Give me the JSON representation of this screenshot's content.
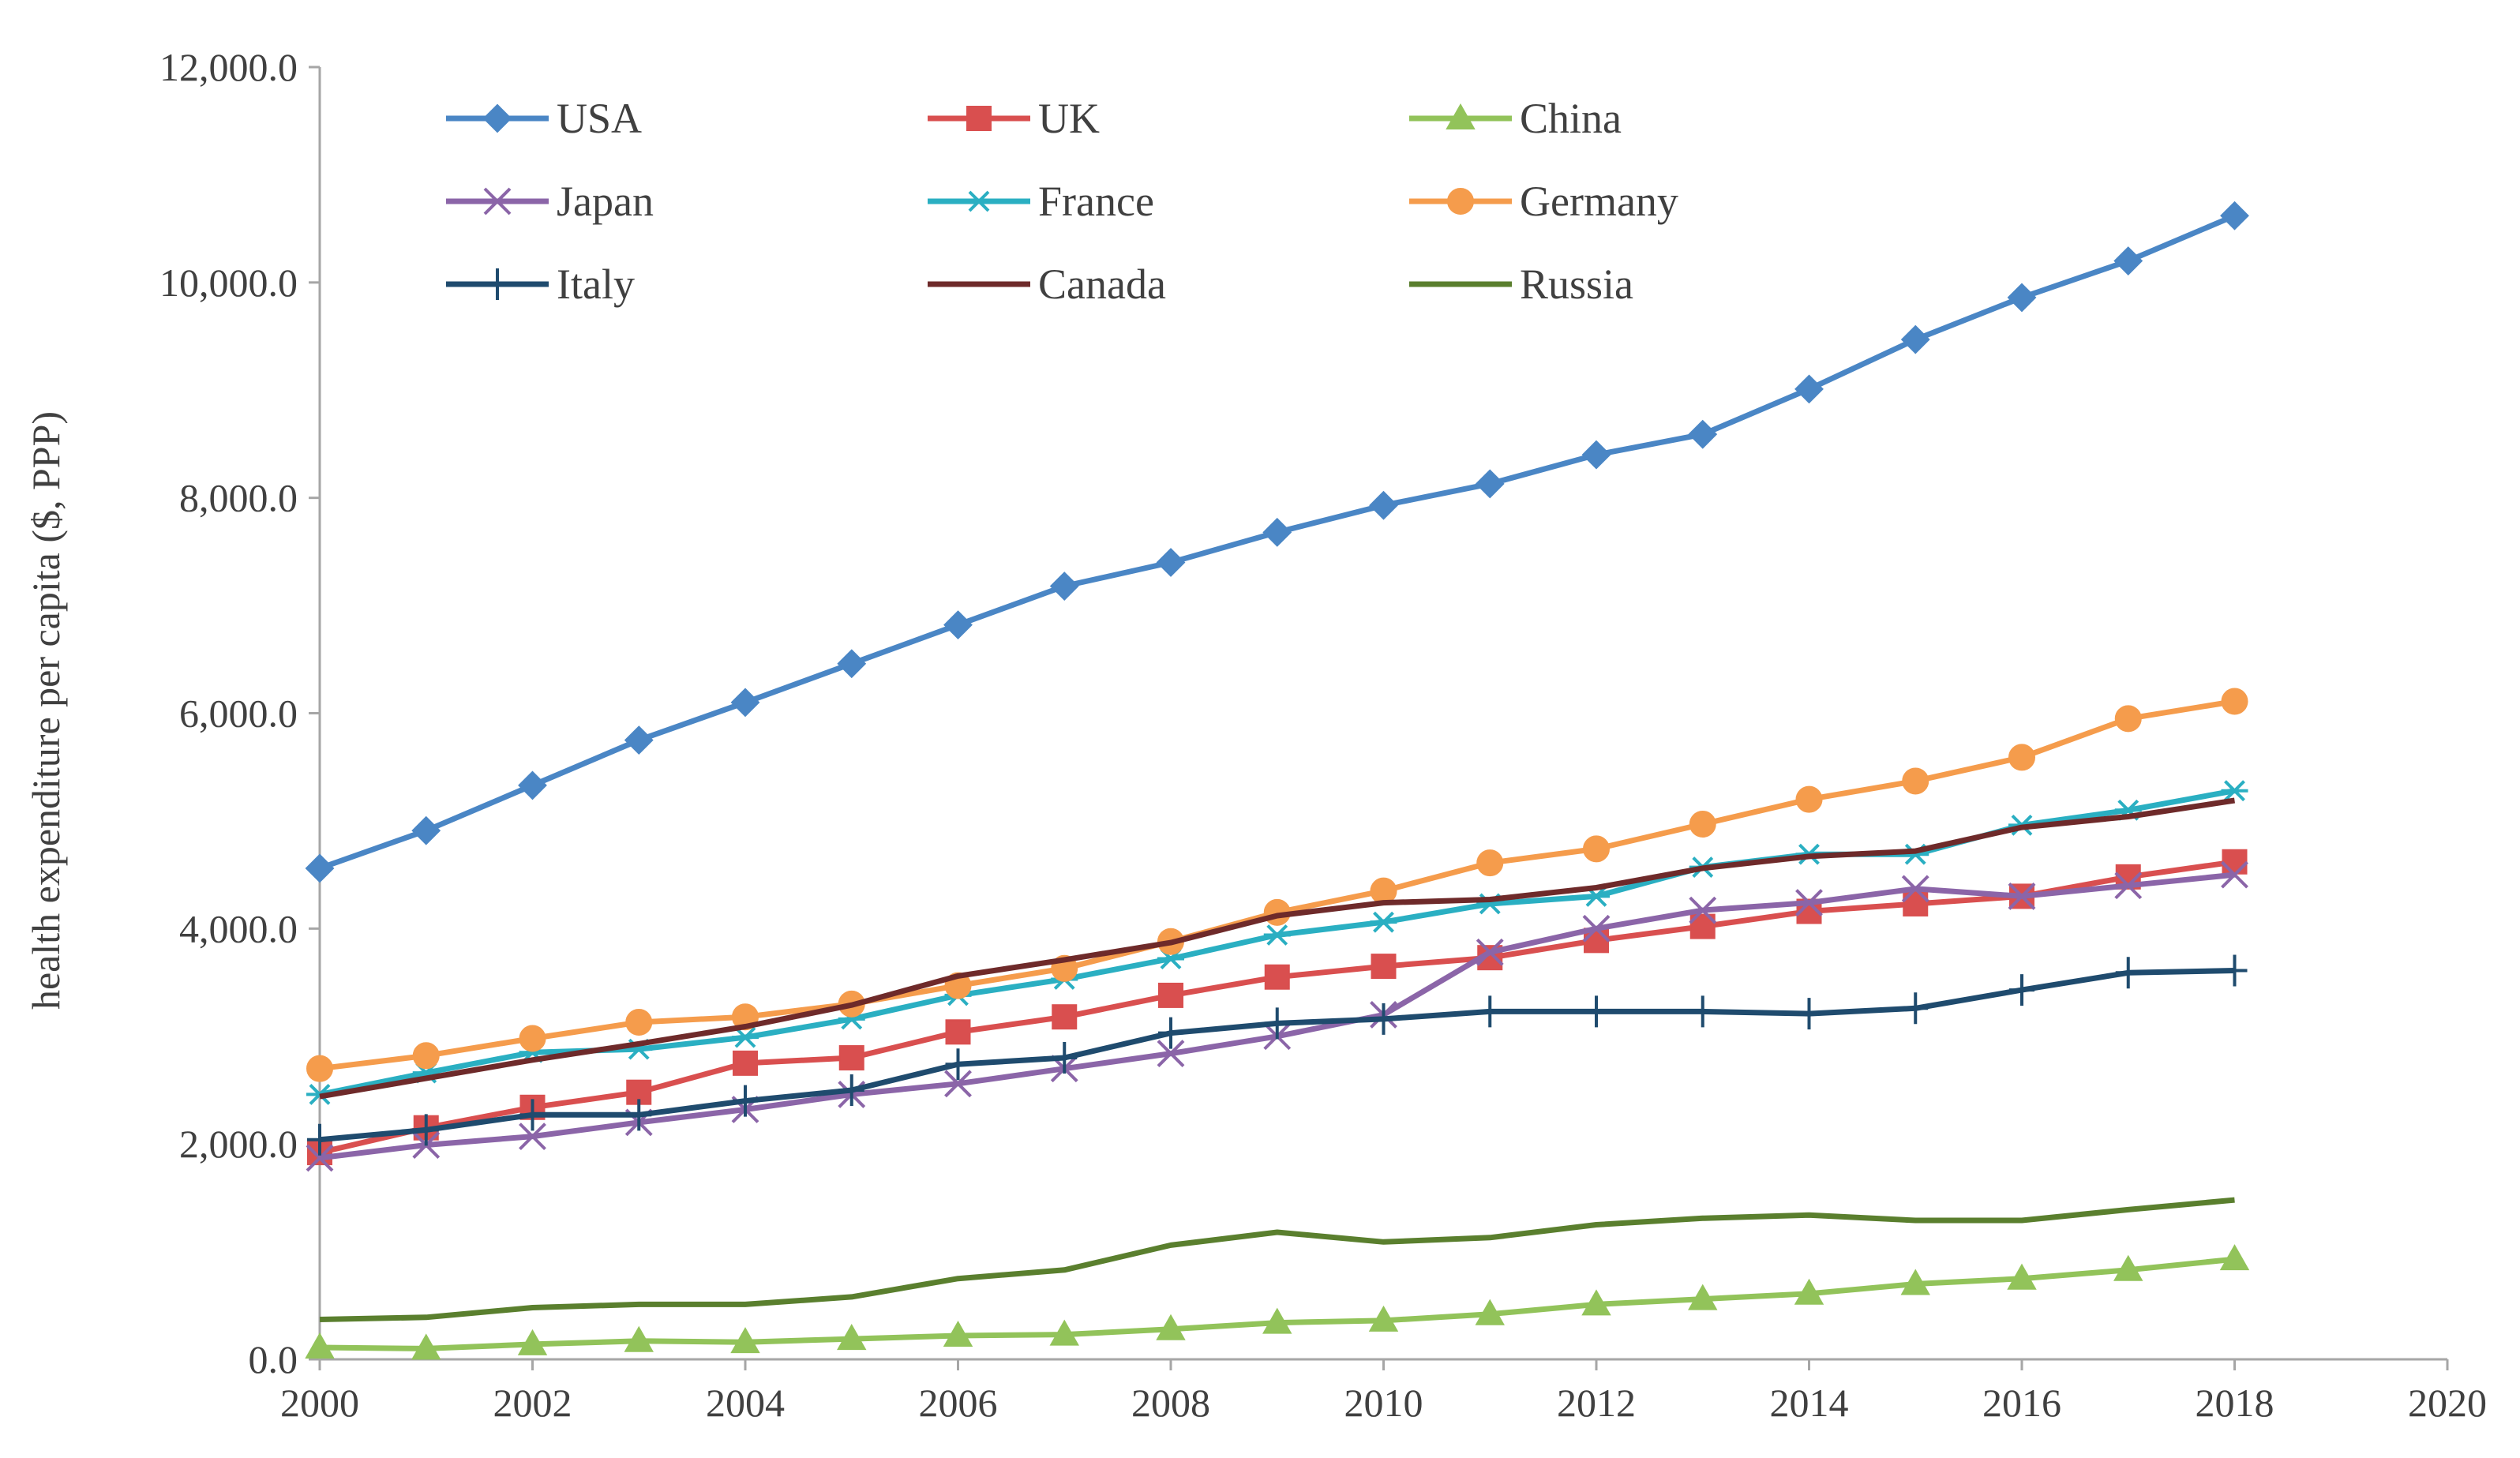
{
  "chart_data": {
    "type": "line",
    "title": "",
    "xlabel": "",
    "ylabel": "health expenditure per capita ($, PPP)",
    "xlim": [
      2000,
      2020
    ],
    "ylim": [
      0,
      12000
    ],
    "x_ticks": [
      2000,
      2002,
      2004,
      2006,
      2008,
      2010,
      2012,
      2014,
      2016,
      2018,
      2020
    ],
    "x_tick_labels": [
      "2000",
      "2002",
      "2004",
      "2006",
      "2008",
      "2010",
      "2012",
      "2014",
      "2016",
      "2018",
      "2020"
    ],
    "y_ticks": [
      0,
      2000,
      4000,
      6000,
      8000,
      10000,
      12000
    ],
    "y_tick_labels": [
      "0.0",
      "2,000.0",
      "4,000.0",
      "6,000.0",
      "8,000.0",
      "10,000.0",
      "12,000.0"
    ],
    "grid": false,
    "legend_position": "top-left, inside plot, 3 columns",
    "x": [
      2000,
      2001,
      2002,
      2003,
      2004,
      2005,
      2006,
      2007,
      2008,
      2009,
      2010,
      2011,
      2012,
      2013,
      2014,
      2015,
      2016,
      2017,
      2018
    ],
    "series": [
      {
        "name": "USA",
        "color": "#4a86c5",
        "marker": "diamond",
        "values": [
          4560,
          4910,
          5330,
          5750,
          6100,
          6460,
          6820,
          7180,
          7400,
          7680,
          7930,
          8130,
          8400,
          8590,
          9010,
          9470,
          9860,
          10200,
          10620
        ]
      },
      {
        "name": "UK",
        "color": "#d94f4f",
        "marker": "square",
        "values": [
          1920,
          2150,
          2340,
          2480,
          2750,
          2800,
          3040,
          3180,
          3380,
          3550,
          3650,
          3730,
          3890,
          4020,
          4160,
          4230,
          4300,
          4480,
          4620
        ]
      },
      {
        "name": "China",
        "color": "#92c35a",
        "marker": "triangle",
        "values": [
          110,
          100,
          140,
          170,
          160,
          190,
          220,
          230,
          280,
          340,
          360,
          420,
          510,
          560,
          610,
          700,
          750,
          830,
          930
        ]
      },
      {
        "name": "Japan",
        "color": "#8b65a8",
        "marker": "x",
        "values": [
          1870,
          1990,
          2070,
          2200,
          2320,
          2460,
          2560,
          2700,
          2840,
          3000,
          3200,
          3780,
          4000,
          4170,
          4240,
          4370,
          4300,
          4400,
          4500
        ]
      },
      {
        "name": "France",
        "color": "#2aafc2",
        "marker": "star",
        "values": [
          2460,
          2660,
          2850,
          2880,
          2990,
          3160,
          3380,
          3530,
          3720,
          3940,
          4060,
          4230,
          4300,
          4570,
          4690,
          4690,
          4960,
          5100,
          5280
        ]
      },
      {
        "name": "Germany",
        "color": "#f59c4c",
        "marker": "circle",
        "values": [
          2700,
          2820,
          2980,
          3130,
          3180,
          3300,
          3470,
          3630,
          3880,
          4150,
          4350,
          4610,
          4740,
          4970,
          5200,
          5370,
          5590,
          5950,
          6110
        ]
      },
      {
        "name": "Italy",
        "color": "#1f4b6e",
        "marker": "plus",
        "values": [
          2040,
          2130,
          2270,
          2270,
          2400,
          2500,
          2740,
          2800,
          3030,
          3120,
          3160,
          3230,
          3230,
          3230,
          3210,
          3260,
          3430,
          3590,
          3610
        ]
      },
      {
        "name": "Canada",
        "color": "#6e2a2a",
        "marker": "none",
        "values": [
          2440,
          2610,
          2780,
          2930,
          3090,
          3290,
          3560,
          3710,
          3870,
          4120,
          4240,
          4270,
          4380,
          4560,
          4670,
          4720,
          4940,
          5040,
          5190
        ]
      },
      {
        "name": "Russia",
        "color": "#5a7f2e",
        "marker": "none",
        "values": [
          370,
          390,
          480,
          510,
          510,
          580,
          750,
          830,
          1060,
          1180,
          1090,
          1130,
          1250,
          1310,
          1340,
          1290,
          1290,
          1390,
          1480
        ]
      }
    ]
  }
}
